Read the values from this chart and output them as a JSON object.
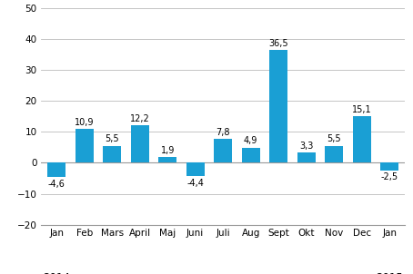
{
  "categories": [
    "Jan",
    "Feb",
    "Mars",
    "April",
    "Maj",
    "Juni",
    "Juli",
    "Aug",
    "Sept",
    "Okt",
    "Nov",
    "Dec",
    "Jan"
  ],
  "values": [
    -4.6,
    10.9,
    5.5,
    12.2,
    1.9,
    -4.4,
    7.8,
    4.9,
    36.5,
    3.3,
    5.5,
    15.1,
    -2.5
  ],
  "bar_color": "#1a9fd4",
  "ylim": [
    -20,
    50
  ],
  "yticks": [
    -20,
    -10,
    0,
    10,
    20,
    30,
    40,
    50
  ],
  "tick_fontsize": 7.5,
  "value_fontsize": 7.0,
  "year_fontsize": 8.5,
  "background_color": "#ffffff",
  "grid_color": "#bbbbbb",
  "year_2014_idx": 0,
  "year_2015_idx": 12
}
